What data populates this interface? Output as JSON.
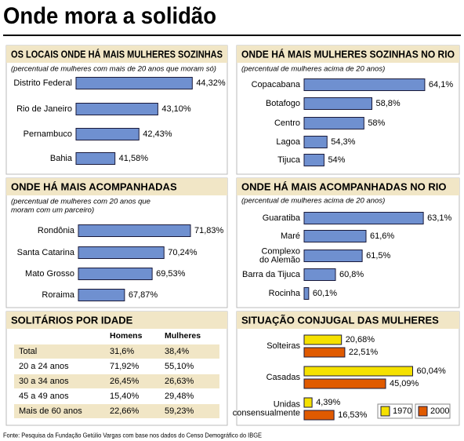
{
  "title": "Onde mora a solidão",
  "source": "Fonte: Pesquisa da Fundação Getúlio Vargas com base nos dados do Censo Demográfico do IBGE",
  "chart_data": [
    {
      "type": "bar",
      "orientation": "horizontal",
      "title": "OS LOCAIS ONDE HÁ MAIS MULHERES SOZINHAS",
      "subtitle": "(percentual de mulheres com mais de 20 anos que moram só)",
      "categories": [
        "Distrito Federal",
        "Rio de Janeiro",
        "Pernambuco",
        "Bahia"
      ],
      "values": [
        44.32,
        43.1,
        42.43,
        41.58
      ],
      "value_labels": [
        "44,32%",
        "43,10%",
        "42,43%",
        "41,58%"
      ],
      "color": "#6f90d0",
      "xlim": [
        40.2,
        44.7
      ]
    },
    {
      "type": "bar",
      "orientation": "horizontal",
      "title": "ONDE HÁ MAIS MULHERES SOZINHAS NO RIO",
      "subtitle": "(percentual de mulheres acima de 20 anos)",
      "categories": [
        "Copacabana",
        "Botafogo",
        "Centro",
        "Lagoa",
        "Tijuca"
      ],
      "values": [
        64.1,
        58.8,
        58,
        54.3,
        54
      ],
      "value_labels": [
        "64,1%",
        "58,8%",
        "58%",
        "54,3%",
        "54%"
      ],
      "color": "#6f90d0",
      "xlim": [
        52,
        64.5
      ]
    },
    {
      "type": "bar",
      "orientation": "horizontal",
      "title": "ONDE HÁ MAIS ACOMPANHADAS",
      "subtitle": "(percentual de mulheres com 20 anos que\nmoram com um parceiro)",
      "categories": [
        "Rondônia",
        "Santa Catarina",
        "Mato Grosso",
        "Roraima"
      ],
      "values": [
        71.83,
        70.24,
        69.53,
        67.87
      ],
      "value_labels": [
        "71,83%",
        "70,24%",
        "69,53%",
        "67,87%"
      ],
      "color": "#6f90d0",
      "xlim": [
        65.1,
        72.3
      ]
    },
    {
      "type": "bar",
      "orientation": "horizontal",
      "title": "ONDE HÁ MAIS ACOMPANHADAS NO RIO",
      "subtitle": "(percentual de mulheres acima de 20 anos)",
      "categories": [
        "Guaratiba",
        "Maré",
        "Complexo\ndo Alemão",
        "Barra da Tijuca",
        "Rocinha"
      ],
      "values": [
        63.1,
        61.6,
        61.5,
        60.8,
        60.1
      ],
      "value_labels": [
        "63,1%",
        "61,6%",
        "61,5%",
        "60,8%",
        "60,1%"
      ],
      "color": "#6f90d0",
      "xlim": [
        59.98,
        63.2
      ]
    },
    {
      "type": "bar",
      "orientation": "horizontal",
      "title": "SITUAÇÃO CONJUGAL DAS MULHERES",
      "categories": [
        "Solteiras",
        "Casadas",
        "Unidas\nconsensualmente"
      ],
      "series": [
        {
          "name": "1970",
          "color": "#f5e100",
          "values": [
            20.68,
            60.04,
            4.39
          ],
          "value_labels": [
            "20,68%",
            "60,04%",
            "4,39%"
          ]
        },
        {
          "name": "2000",
          "color": "#e05a00",
          "values": [
            22.51,
            45.09,
            16.53
          ],
          "value_labels": [
            "22,51%",
            "45,09%",
            "16,53%"
          ]
        }
      ],
      "xlim": [
        0,
        62
      ],
      "legend": "lower right"
    }
  ],
  "table": {
    "title": "SOLITÁRIOS POR IDADE",
    "columns": [
      "Homens",
      "Mulheres"
    ],
    "rows": [
      [
        "Total",
        "31,6%",
        "38,4%"
      ],
      [
        "20 a 24 anos",
        "71,92%",
        "55,10%"
      ],
      [
        "30 a 34 anos",
        "26,45%",
        "26,63%"
      ],
      [
        "45 a 49 anos",
        "15,40%",
        "29,48%"
      ],
      [
        "Mais de 60 anos",
        "22,66%",
        "59,23%"
      ]
    ]
  }
}
